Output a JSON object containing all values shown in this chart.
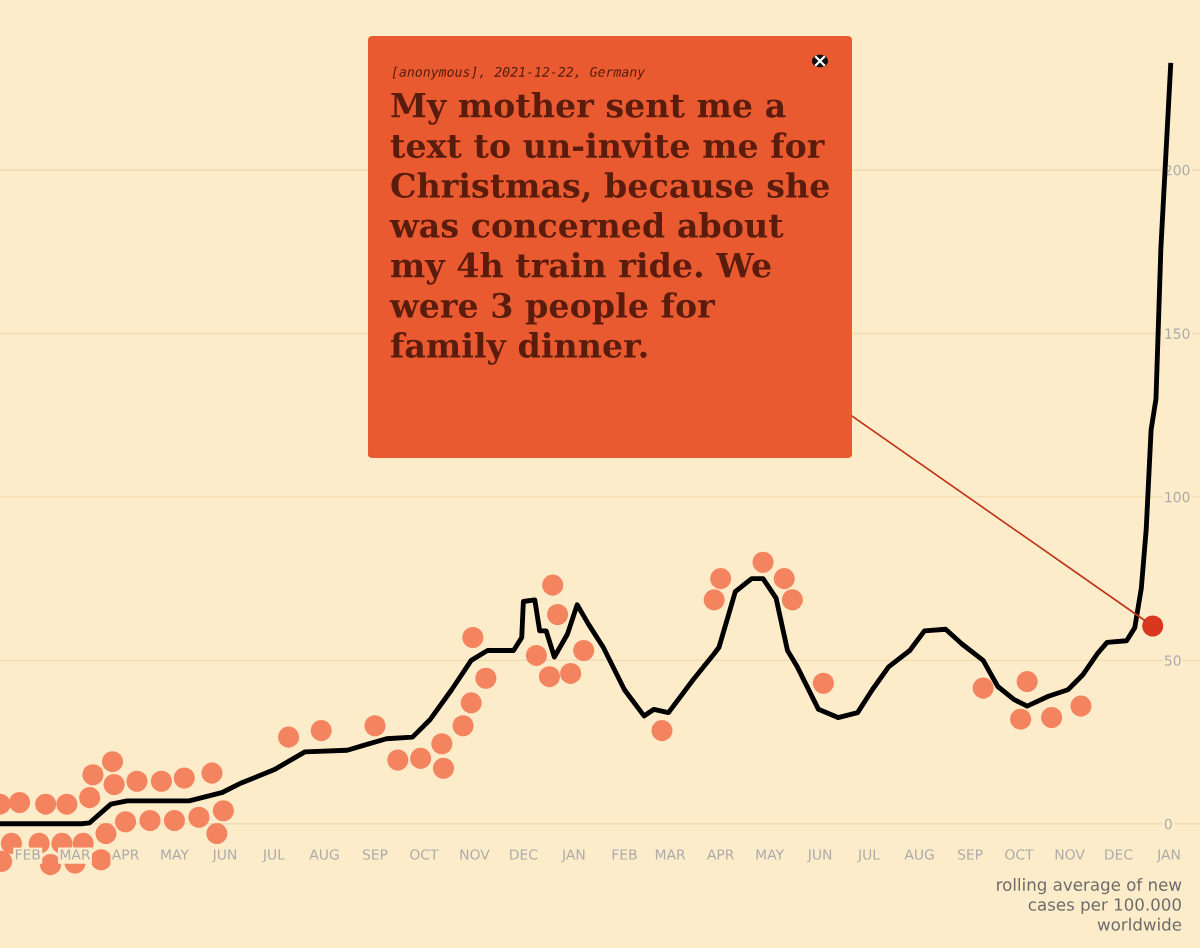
{
  "chart_data": {
    "type": "line",
    "series": [
      {
        "color": "#000000",
        "marker": "none",
        "line_style": "solid",
        "x": [
          "2020-01-15",
          "2020-03-05",
          "2020-03-10",
          "2020-03-23",
          "2020-04-02",
          "2020-05-10",
          "2020-05-30",
          "2020-06-11",
          "2020-07-01",
          "2020-07-20",
          "2020-08-15",
          "2020-08-25",
          "2020-09-08",
          "2020-09-24",
          "2020-10-05",
          "2020-10-18",
          "2020-10-30",
          "2020-11-09",
          "2020-11-25",
          "2020-11-30",
          "2020-12-01",
          "2020-12-08",
          "2020-12-11",
          "2020-12-15",
          "2020-12-20",
          "2020-12-28",
          "2021-01-03",
          "2021-01-10",
          "2021-01-19",
          "2021-02-01",
          "2021-02-13",
          "2021-02-19",
          "2021-02-28",
          "2021-03-15",
          "2021-03-28",
          "2021-03-31",
          "2021-04-10",
          "2021-04-20",
          "2021-04-27",
          "2021-05-05",
          "2021-05-12",
          "2021-05-18",
          "2021-05-31",
          "2021-06-12",
          "2021-06-24",
          "2021-07-03",
          "2021-07-13",
          "2021-07-26",
          "2021-08-04",
          "2021-08-17",
          "2021-08-27",
          "2021-09-09",
          "2021-09-18",
          "2021-09-28",
          "2021-10-06",
          "2021-10-19",
          "2021-10-31",
          "2021-11-09",
          "2021-11-18",
          "2021-11-24",
          "2021-12-06",
          "2021-12-11",
          "2021-12-15",
          "2021-12-18",
          "2021-12-21",
          "2021-12-24",
          "2021-12-27",
          "2022-01-02"
        ],
        "values": [
          0,
          0,
          0.3,
          6,
          7,
          7,
          9.5,
          12.5,
          16.5,
          22,
          22.5,
          24,
          26,
          26.5,
          32,
          41,
          50,
          53,
          53,
          57,
          68,
          68.5,
          59,
          59,
          51,
          58,
          67,
          61,
          54,
          41,
          33,
          35,
          34,
          44,
          52,
          54,
          71,
          75,
          75,
          69,
          53,
          48,
          35,
          32.5,
          34,
          41,
          48,
          53,
          59,
          59.5,
          55,
          50,
          42,
          38,
          36,
          39,
          41,
          45.5,
          52,
          55.5,
          56,
          60,
          72,
          90,
          120.5,
          130,
          176,
          232
        ]
      },
      {
        "type": "scatter",
        "color": "#f4845f",
        "marker": "circle",
        "x": [
          "2020-01-15",
          "2020-01-16",
          "2020-01-22",
          "2020-01-27",
          "2020-02-08",
          "2020-02-12",
          "2020-02-15",
          "2020-02-22",
          "2020-02-25",
          "2020-03-01",
          "2020-03-06",
          "2020-03-10",
          "2020-03-12",
          "2020-03-17",
          "2020-03-20",
          "2020-03-24",
          "2020-03-25",
          "2020-04-01",
          "2020-04-08",
          "2020-04-16",
          "2020-04-23",
          "2020-05-01",
          "2020-05-07",
          "2020-05-16",
          "2020-05-24",
          "2020-05-27",
          "2020-05-31",
          "2020-07-10",
          "2020-07-30",
          "2020-09-01",
          "2020-09-15",
          "2020-09-29",
          "2020-10-12",
          "2020-10-13",
          "2020-10-25",
          "2020-10-30",
          "2020-10-31",
          "2020-11-08",
          "2020-12-09",
          "2020-12-17",
          "2020-12-19",
          "2020-12-22",
          "2020-12-30",
          "2021-01-07",
          "2021-02-24",
          "2021-03-28",
          "2021-04-01",
          "2021-04-27",
          "2021-05-10",
          "2021-05-15",
          "2021-06-03",
          "2021-09-09",
          "2021-10-02",
          "2021-10-06",
          "2021-10-21",
          "2021-11-08"
        ],
        "values": [
          6,
          -11.5,
          -6,
          6.5,
          -6,
          6,
          -12.5,
          -6,
          6,
          -12,
          -6,
          8,
          15,
          -11,
          -3,
          19,
          12,
          0.6,
          13,
          1,
          13,
          1,
          14,
          2,
          15.5,
          -3,
          4,
          26.5,
          28.5,
          30,
          19.5,
          20,
          24.5,
          17,
          30,
          37,
          57,
          44.5,
          51.5,
          45,
          73,
          64,
          46,
          53,
          28.5,
          68.5,
          75,
          80,
          75,
          68.5,
          43,
          41.5,
          32,
          43.5,
          32.5,
          36
        ]
      },
      {
        "type": "scatter",
        "color": "#d9381e",
        "marker": "circle",
        "x": [
          "2021-12-22"
        ],
        "values": [
          60.5
        ]
      }
    ],
    "xlim": [
      "2020-01-15",
      "2022-01-20"
    ],
    "xticks": [
      {
        "value": "2020-02-01",
        "label": "FEB"
      },
      {
        "value": "2020-03-01",
        "label": "MAR"
      },
      {
        "value": "2020-04-01",
        "label": "APR"
      },
      {
        "value": "2020-05-01",
        "label": "MAY"
      },
      {
        "value": "2020-06-01",
        "label": "JUN"
      },
      {
        "value": "2020-07-01",
        "label": "JUL"
      },
      {
        "value": "2020-08-01",
        "label": "AUG"
      },
      {
        "value": "2020-09-01",
        "label": "SEP"
      },
      {
        "value": "2020-10-01",
        "label": "OCT"
      },
      {
        "value": "2020-11-01",
        "label": "NOV"
      },
      {
        "value": "2020-12-01",
        "label": "DEC"
      },
      {
        "value": "2021-01-01",
        "label": "JAN"
      },
      {
        "value": "2021-02-01",
        "label": "FEB"
      },
      {
        "value": "2021-03-01",
        "label": "MAR"
      },
      {
        "value": "2021-04-01",
        "label": "APR"
      },
      {
        "value": "2021-05-01",
        "label": "MAY"
      },
      {
        "value": "2021-06-01",
        "label": "JUN"
      },
      {
        "value": "2021-07-01",
        "label": "JUL"
      },
      {
        "value": "2021-08-01",
        "label": "AUG"
      },
      {
        "value": "2021-09-01",
        "label": "SEP"
      },
      {
        "value": "2021-10-01",
        "label": "OCT"
      },
      {
        "value": "2021-11-01",
        "label": "NOV"
      },
      {
        "value": "2021-12-01",
        "label": "DEC"
      },
      {
        "value": "2022-01-01",
        "label": "JAN"
      }
    ],
    "ylim": [
      -38,
      252
    ],
    "yticks": [
      0,
      50,
      100,
      150,
      200
    ],
    "grid": "y",
    "annotations": [
      "[anonymous], 2021-12-22, Germany",
      {
        "text": "My mother sent me a\ntext to un-invite me for\nChristmas, because she\nwas concerned about\nmy 4h train ride. We\nwere 3 people for\nfamily dinner.",
        "x": "2021-12-22",
        "y": 60.5
      },
      "rolling average of new\ncases per 100.000\nworldwide"
    ]
  }
}
